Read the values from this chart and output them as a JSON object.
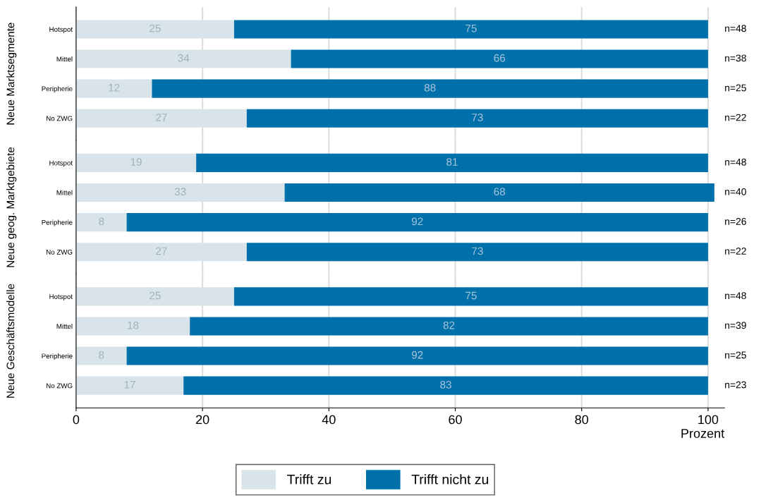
{
  "chart_data": [
    {
      "type": "bar",
      "orientation": "horizontal",
      "stacked": true,
      "ylabel": "Neue Marktsegmente",
      "categories": [
        "Hotspot",
        "Mittel",
        "Peripherie",
        "No ZWG"
      ],
      "series": [
        {
          "name": "Trifft zu",
          "color": "#d9e4ea",
          "values": [
            25,
            34,
            12,
            27
          ]
        },
        {
          "name": "Trifft nicht zu",
          "color": "#0070ab",
          "values": [
            75,
            66,
            88,
            73
          ]
        }
      ],
      "data_labels": true,
      "xlim": [
        0,
        102.6
      ],
      "xticks": [
        0,
        20,
        40,
        60,
        80,
        100
      ],
      "grid": "x",
      "tick_labels": "y",
      "legend": "bottom",
      "annotations": [
        "n=48",
        "n=38",
        "n=25",
        "n=22"
      ]
    },
    {
      "type": "bar",
      "orientation": "horizontal",
      "stacked": true,
      "ylabel": "Neue geog. Marktgebiete",
      "categories": [
        "Hotspot",
        "Mittel",
        "Peripherie",
        "No ZWG"
      ],
      "series": [
        {
          "color": "#d9e4ea",
          "values": [
            19,
            33,
            8,
            27
          ]
        },
        {
          "color": "#0070ab",
          "values": [
            81,
            68,
            92,
            73
          ]
        }
      ],
      "data_labels": true,
      "xlim": [
        0,
        102.6
      ],
      "xticks": [
        0,
        20,
        40,
        60,
        80,
        100
      ],
      "grid": "x",
      "tick_labels": "y",
      "annotations": [
        "n=48",
        "n=40",
        "n=26",
        "n=22"
      ]
    },
    {
      "type": "bar",
      "orientation": "horizontal",
      "stacked": true,
      "ylabel": "Neue Geschäftsmodelle",
      "xlabel": "Prozent",
      "categories": [
        "Hotspot",
        "Mittel",
        "Peripherie",
        "No ZWG"
      ],
      "series": [
        {
          "color": "#d9e4ea",
          "values": [
            25,
            18,
            8,
            17
          ]
        },
        {
          "color": "#0070ab",
          "values": [
            75,
            82,
            92,
            83
          ]
        }
      ],
      "data_labels": true,
      "xlim": [
        0,
        102.6
      ],
      "xticks": [
        0,
        20,
        40,
        60,
        80,
        100
      ],
      "grid": "x",
      "annotations": [
        "n=48",
        "n=39",
        "n=25",
        "n=23"
      ]
    }
  ]
}
